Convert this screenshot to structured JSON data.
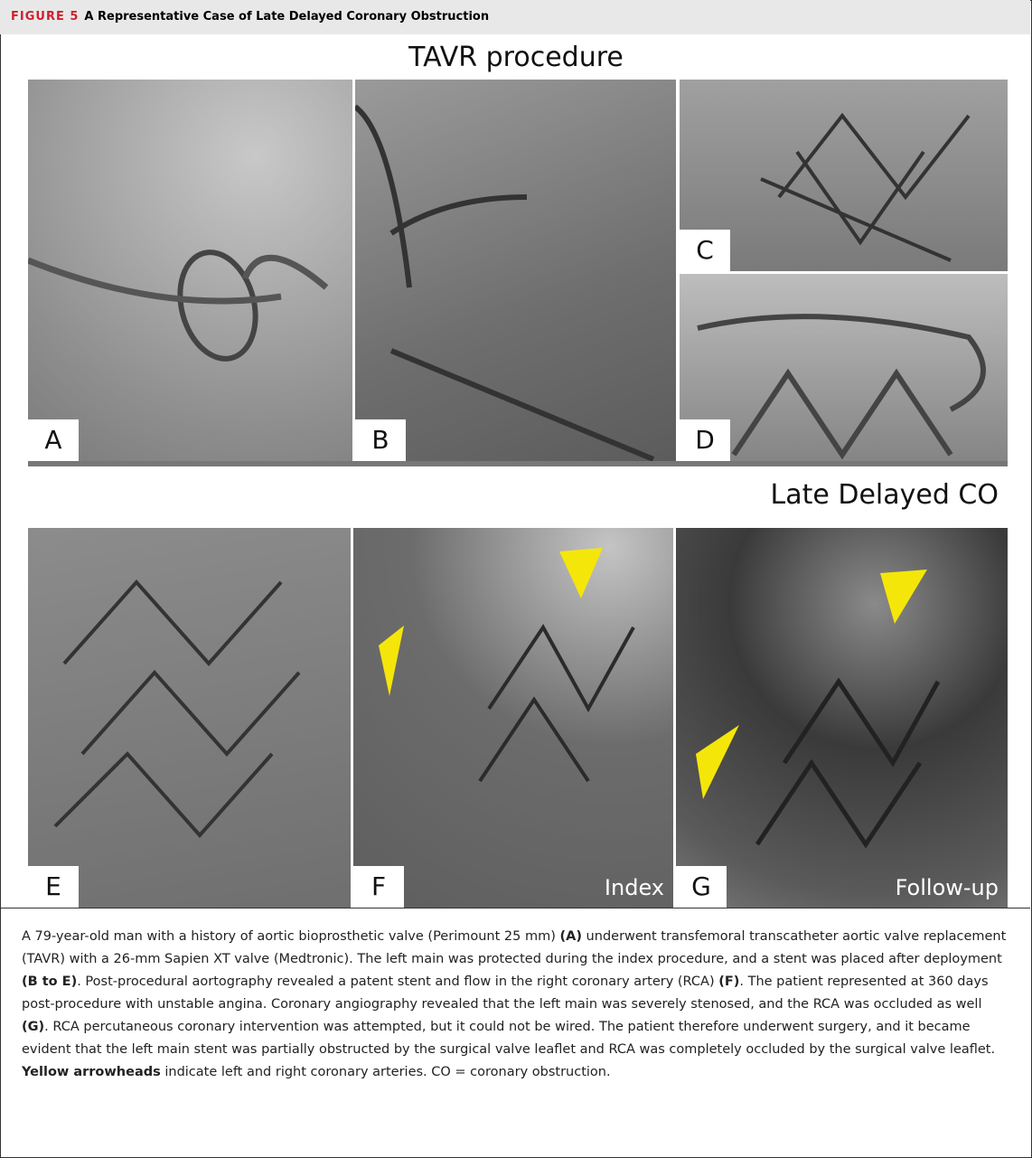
{
  "header": {
    "label": "FIGURE 5",
    "title": "A Representative Case of Late Delayed Coronary Obstruction"
  },
  "figure": {
    "top_title": "TAVR procedure",
    "bottom_title": "Late Delayed CO",
    "panels": [
      {
        "label": "A"
      },
      {
        "label": "B"
      },
      {
        "label": "C"
      },
      {
        "label": "D"
      },
      {
        "label": "E"
      },
      {
        "label": "F",
        "note": "Index"
      },
      {
        "label": "G",
        "note": "Follow-up"
      }
    ]
  },
  "caption": {
    "runs": [
      "A 79-year-old man with a history of aortic bioprosthetic valve (Perimount 25 mm) ",
      "(A)",
      " underwent transfemoral transcatheter aortic valve replacement (TAVR) with a 26-mm Sapien XT valve (Medtronic). The left main was protected during the index procedure, and a stent was placed after deployment ",
      "(B to E)",
      ". Post-procedural aortography revealed a patent stent and flow in the right coronary artery (RCA) ",
      "(F)",
      ". The patient represented at 360 days post-procedure with unstable angina. Coronary angiography revealed that the left main was severely stenosed, and the RCA was occluded as well ",
      "(G)",
      ". RCA percutaneous coronary intervention was attempted, but it could not be wired. The patient therefore underwent surgery, and it became evident that the left main stent was partially obstructed by the surgical valve leaflet and RCA was completely occluded by the surgical valve leaflet. ",
      "Yellow arrowheads",
      " indicate left and right coronary arteries. CO = coronary obstruction."
    ]
  }
}
